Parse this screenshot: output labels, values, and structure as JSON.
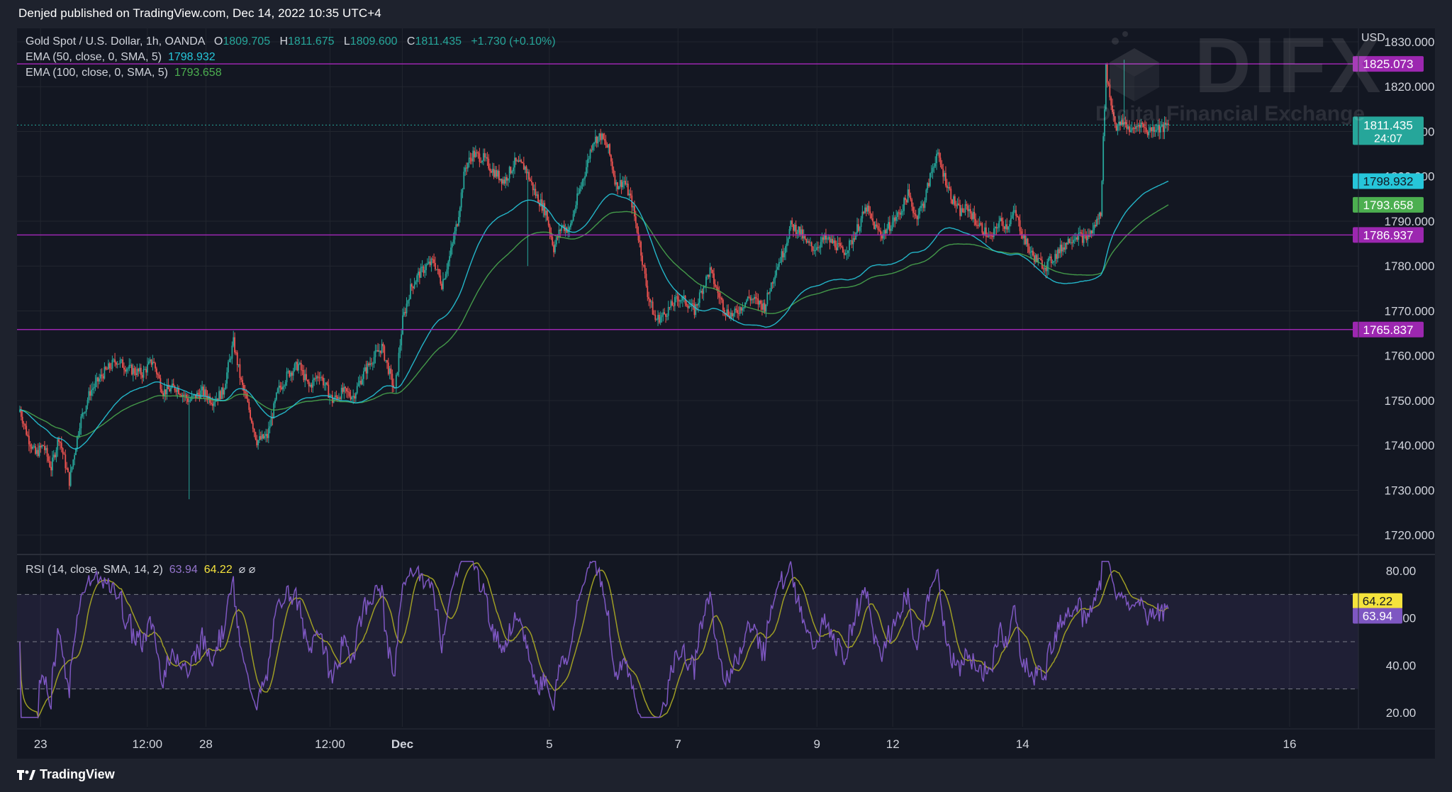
{
  "published_line": "Denjed published on TradingView.com, Dec 14, 2022 10:35 UTC+4",
  "footer": {
    "brand": "TradingView",
    "icon": "tradingview-logo-icon"
  },
  "watermark": {
    "brand": "DIFX",
    "tagline": "Digital Financial Exchange"
  },
  "legend": {
    "symbol": "Gold Spot / U.S. Dollar, 1h, OANDA",
    "open_label": "O",
    "open": "1809.705",
    "high_label": "H",
    "high": "1811.675",
    "low_label": "L",
    "low": "1809.600",
    "close_label": "C",
    "close": "1811.435",
    "change": "+1.730 (+0.10%)",
    "ema50_label": "EMA (50, close, 0, SMA, 5)",
    "ema50_value": "1798.932",
    "ema100_label": "EMA (100, close, 0, SMA, 5)",
    "ema100_value": "1793.658"
  },
  "rsi_legend": {
    "label": "RSI (14, close, SMA, 14, 2)",
    "rsi_value": "63.94",
    "ma_value": "64.22",
    "extra": "⌀ ⌀"
  },
  "colors": {
    "background": "#131722",
    "frame": "#1e222d",
    "up": "#26a69a",
    "down": "#ef5350",
    "ema50": "#26c6da",
    "ema100": "#4caf50",
    "level_line": "#9c27b0",
    "rsi_line": "#7e57c2",
    "rsi_ma": "#9e9d24"
  },
  "chart_data": [
    {
      "type": "candlestick",
      "title": "Gold Spot / U.S. Dollar, 1h, OANDA",
      "currency_label": "USD",
      "y_ticks": [
        "1720.000",
        "1730.000",
        "1740.000",
        "1750.000",
        "1760.000",
        "1770.000",
        "1780.000",
        "1790.000",
        "1800.000",
        "1810.000",
        "1820.000",
        "1830.000"
      ],
      "ylim": [
        1716,
        1833
      ],
      "x_ticks": [
        "23",
        "12:00",
        "28",
        "12:00",
        "Dec",
        "5",
        "7",
        "9",
        "12",
        "14",
        "16"
      ],
      "horizontal_levels": [
        {
          "value": 1825.073,
          "label": "1825.073"
        },
        {
          "value": 1786.937,
          "label": "1786.937"
        },
        {
          "value": 1765.837,
          "label": "1765.837"
        }
      ],
      "price_labels": [
        {
          "value": 1811.435,
          "label": "1811.435",
          "sublabel": "24:07",
          "color": "#26a69a"
        },
        {
          "value": 1798.932,
          "label": "1798.932",
          "color": "#26c6da"
        },
        {
          "value": 1793.658,
          "label": "1793.658",
          "color": "#4caf50"
        }
      ],
      "close_path_anchors": [
        [
          0,
          1748
        ],
        [
          6,
          1742
        ],
        [
          12,
          1738
        ],
        [
          18,
          1740
        ],
        [
          24,
          1735
        ],
        [
          30,
          1742
        ],
        [
          38,
          1732
        ],
        [
          46,
          1745
        ],
        [
          54,
          1752
        ],
        [
          64,
          1756
        ],
        [
          74,
          1759
        ],
        [
          84,
          1757
        ],
        [
          94,
          1756
        ],
        [
          102,
          1759
        ],
        [
          110,
          1752
        ],
        [
          120,
          1753
        ],
        [
          130,
          1750
        ],
        [
          140,
          1752
        ],
        [
          148,
          1750
        ],
        [
          156,
          1752
        ],
        [
          164,
          1763
        ],
        [
          170,
          1754
        ],
        [
          176,
          1748
        ],
        [
          182,
          1741
        ],
        [
          190,
          1742
        ],
        [
          198,
          1752
        ],
        [
          206,
          1756
        ],
        [
          214,
          1758
        ],
        [
          222,
          1753
        ],
        [
          230,
          1756
        ],
        [
          240,
          1750
        ],
        [
          248,
          1752
        ],
        [
          256,
          1751
        ],
        [
          264,
          1756
        ],
        [
          270,
          1759
        ],
        [
          278,
          1762
        ],
        [
          284,
          1756
        ],
        [
          288,
          1752
        ],
        [
          294,
          1768
        ],
        [
          300,
          1775
        ],
        [
          306,
          1778
        ],
        [
          312,
          1780
        ],
        [
          318,
          1781
        ],
        [
          324,
          1776
        ],
        [
          330,
          1782
        ],
        [
          336,
          1790
        ],
        [
          342,
          1802
        ],
        [
          348,
          1805
        ],
        [
          356,
          1804
        ],
        [
          364,
          1801
        ],
        [
          372,
          1799
        ],
        [
          380,
          1803
        ],
        [
          388,
          1802
        ],
        [
          396,
          1796
        ],
        [
          404,
          1792
        ],
        [
          410,
          1784
        ],
        [
          416,
          1789
        ],
        [
          422,
          1788
        ],
        [
          428,
          1795
        ],
        [
          434,
          1801
        ],
        [
          440,
          1808
        ],
        [
          446,
          1809
        ],
        [
          452,
          1806
        ],
        [
          458,
          1798
        ],
        [
          464,
          1799
        ],
        [
          470,
          1794
        ],
        [
          476,
          1785
        ],
        [
          482,
          1774
        ],
        [
          488,
          1768
        ],
        [
          494,
          1769
        ],
        [
          500,
          1771
        ],
        [
          506,
          1773
        ],
        [
          512,
          1772
        ],
        [
          518,
          1770
        ],
        [
          524,
          1775
        ],
        [
          530,
          1779
        ],
        [
          536,
          1774
        ],
        [
          542,
          1770
        ],
        [
          548,
          1769
        ],
        [
          554,
          1771
        ],
        [
          560,
          1773
        ],
        [
          566,
          1772
        ],
        [
          572,
          1771
        ],
        [
          580,
          1779
        ],
        [
          586,
          1783
        ],
        [
          592,
          1789
        ],
        [
          598,
          1788
        ],
        [
          604,
          1785
        ],
        [
          610,
          1784
        ],
        [
          618,
          1786
        ],
        [
          626,
          1785
        ],
        [
          632,
          1783
        ],
        [
          638,
          1785
        ],
        [
          644,
          1789
        ],
        [
          650,
          1793
        ],
        [
          656,
          1789
        ],
        [
          662,
          1787
        ],
        [
          668,
          1789
        ],
        [
          676,
          1792
        ],
        [
          682,
          1796
        ],
        [
          688,
          1791
        ],
        [
          694,
          1794
        ],
        [
          700,
          1801
        ],
        [
          704,
          1805
        ],
        [
          710,
          1800
        ],
        [
          716,
          1795
        ],
        [
          722,
          1792
        ],
        [
          728,
          1793
        ],
        [
          734,
          1790
        ],
        [
          740,
          1788
        ],
        [
          746,
          1786
        ],
        [
          752,
          1790
        ],
        [
          758,
          1789
        ],
        [
          764,
          1792
        ],
        [
          770,
          1787
        ],
        [
          776,
          1783
        ],
        [
          782,
          1781
        ],
        [
          788,
          1780
        ],
        [
          794,
          1782
        ],
        [
          800,
          1784
        ],
        [
          806,
          1786
        ],
        [
          812,
          1787
        ],
        [
          818,
          1786
        ],
        [
          824,
          1788
        ],
        [
          830,
          1792
        ],
        [
          834,
          1824
        ],
        [
          838,
          1816
        ],
        [
          842,
          1811
        ],
        [
          848,
          1812
        ],
        [
          854,
          1810
        ],
        [
          860,
          1812
        ],
        [
          866,
          1810
        ],
        [
          872,
          1811
        ],
        [
          878,
          1810.7
        ],
        [
          882,
          1811.4
        ]
      ],
      "candle_count": 883,
      "series": [
        {
          "name": "EMA (50, close, 0, SMA, 5)",
          "last": 1798.932
        },
        {
          "name": "EMA (100, close, 0, SMA, 5)",
          "last": 1793.658
        }
      ]
    },
    {
      "type": "line",
      "title": "RSI (14, close, SMA, 14, 2)",
      "y_ticks": [
        "20.00",
        "40.00",
        "60.00",
        "80.00"
      ],
      "ylim": [
        14,
        86
      ],
      "bands": {
        "upper": 70,
        "middle": 50,
        "lower": 30
      },
      "price_labels": [
        {
          "value": 64.22,
          "label": "64.22",
          "color": "#f5e33c"
        },
        {
          "value": 63.94,
          "label": "63.94",
          "color": "#7e57c2"
        }
      ],
      "series": [
        {
          "name": "RSI",
          "last": 63.94
        },
        {
          "name": "RSI-based MA",
          "last": 64.22
        }
      ]
    }
  ]
}
